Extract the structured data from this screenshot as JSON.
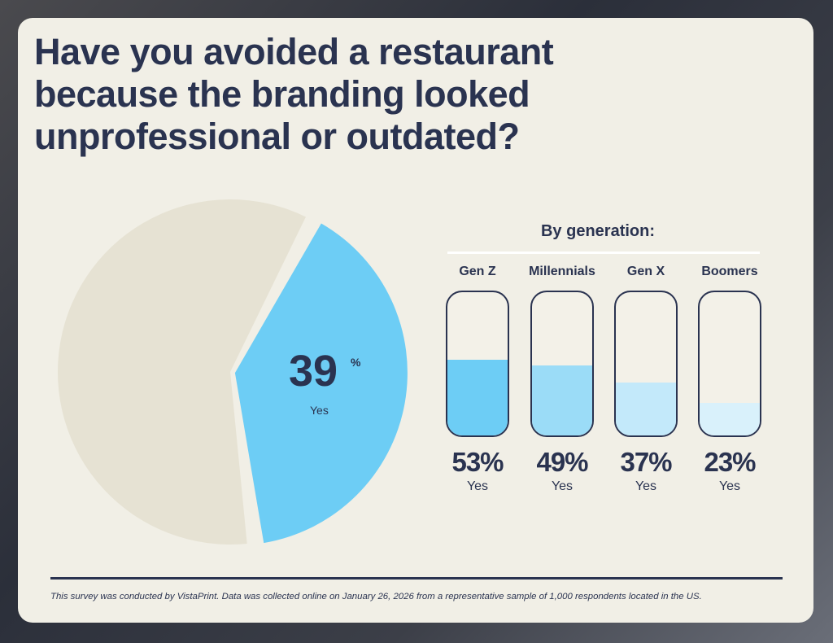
{
  "title": "Have you avoided a restaurant because the branding looked unprofessional or outdated?",
  "chart_data": [
    {
      "type": "pie",
      "slices": [
        {
          "label": "Yes",
          "value": 39,
          "color": "#6dcdf5"
        },
        {
          "value": 61,
          "color": "#e6e2d3"
        }
      ],
      "center_value": "39",
      "center_unit": "%",
      "center_label": "Yes"
    },
    {
      "type": "bar",
      "title": "By generation:",
      "categories": [
        "Gen Z",
        "Millennials",
        "Gen X",
        "Boomers"
      ],
      "values": [
        53,
        49,
        37,
        23
      ],
      "value_labels": [
        "53%",
        "49%",
        "37%",
        "23%"
      ],
      "sub_label": "Yes",
      "colors": [
        "#6dcdf5",
        "#9bdcf7",
        "#c3e9fa",
        "#d9f1fb"
      ],
      "ylim": [
        0,
        100
      ]
    }
  ],
  "footnote": "This survey was conducted by VistaPrint. Data was collected online on January 26, 2026 from a representative sample of 1,000 respondents located in the US."
}
